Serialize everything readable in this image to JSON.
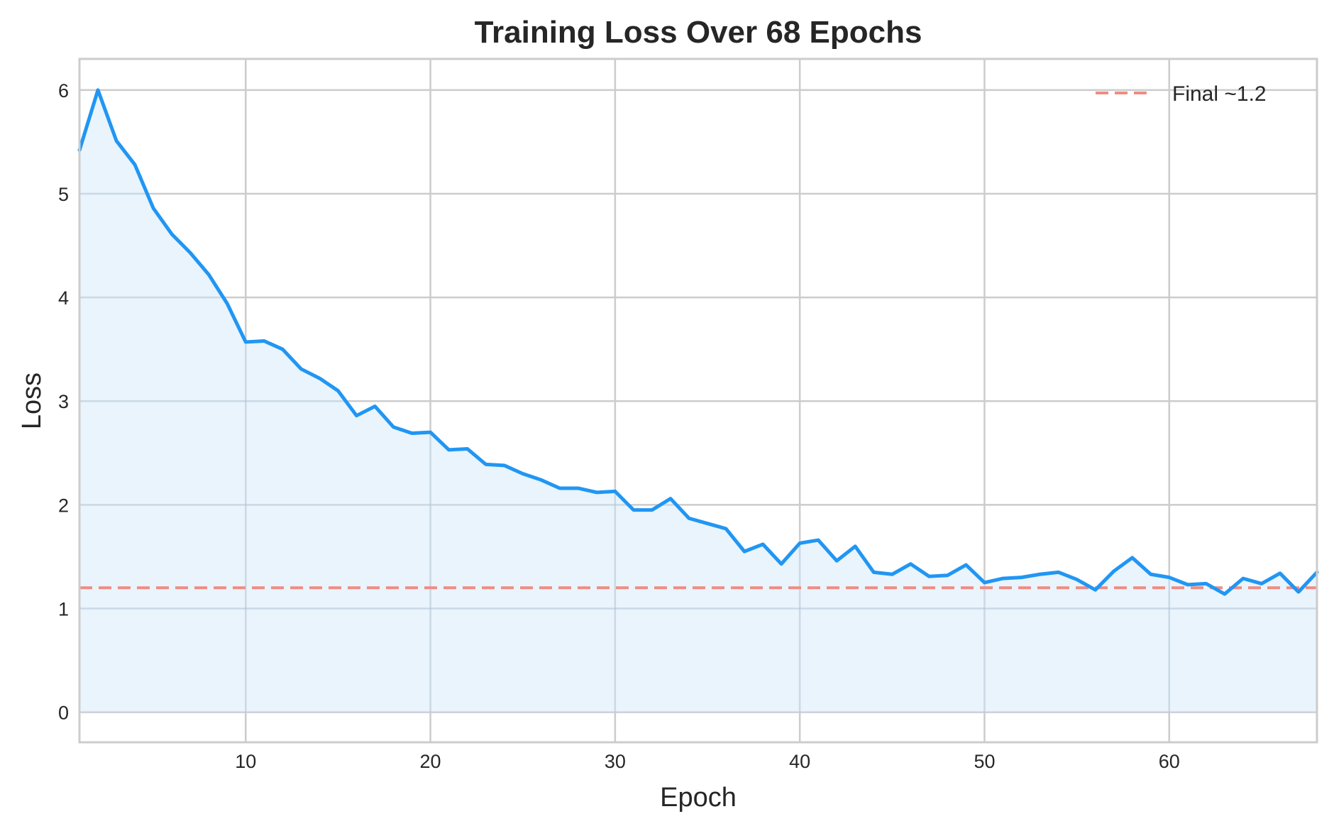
{
  "chart_data": {
    "type": "line",
    "title": "Training Loss Over 68 Epochs",
    "xlabel": "Epoch",
    "ylabel": "Loss",
    "xlim": [
      1,
      68
    ],
    "ylim": [
      -0.29,
      6.3
    ],
    "xticks": [
      10,
      20,
      30,
      40,
      50,
      60
    ],
    "yticks": [
      0,
      1,
      2,
      3,
      4,
      5,
      6
    ],
    "grid": true,
    "legend_position": "upper right",
    "series": [
      {
        "name": "Training Loss",
        "color": "#2196F3",
        "fill": true,
        "fill_color": "#E5F2FC",
        "x": [
          1,
          2,
          3,
          4,
          5,
          6,
          7,
          8,
          9,
          10,
          11,
          12,
          13,
          14,
          15,
          16,
          17,
          18,
          19,
          20,
          21,
          22,
          23,
          24,
          25,
          26,
          27,
          28,
          29,
          30,
          31,
          32,
          33,
          34,
          35,
          36,
          37,
          38,
          39,
          40,
          41,
          42,
          43,
          44,
          45,
          46,
          47,
          48,
          49,
          50,
          51,
          52,
          53,
          54,
          55,
          56,
          57,
          58,
          59,
          60,
          61,
          62,
          63,
          64,
          65,
          66,
          67,
          68
        ],
        "values": [
          5.42,
          6.0,
          5.51,
          5.28,
          4.86,
          4.61,
          4.43,
          4.22,
          3.94,
          3.57,
          3.58,
          3.5,
          3.31,
          3.22,
          3.1,
          2.86,
          2.95,
          2.75,
          2.69,
          2.7,
          2.53,
          2.54,
          2.39,
          2.38,
          2.3,
          2.24,
          2.16,
          2.16,
          2.12,
          2.13,
          1.95,
          1.95,
          2.06,
          1.87,
          1.82,
          1.77,
          1.55,
          1.62,
          1.43,
          1.63,
          1.66,
          1.46,
          1.6,
          1.35,
          1.33,
          1.43,
          1.31,
          1.32,
          1.42,
          1.25,
          1.29,
          1.3,
          1.33,
          1.35,
          1.28,
          1.18,
          1.36,
          1.49,
          1.33,
          1.3,
          1.23,
          1.24,
          1.14,
          1.29,
          1.24,
          1.34,
          1.16,
          1.35
        ]
      },
      {
        "name": "Final ~1.2",
        "type": "hline",
        "value": 1.2,
        "color": "#F08C84",
        "style": "dashed"
      }
    ],
    "legend": [
      {
        "label": "Final ~1.2",
        "color": "#F08C84",
        "style": "dashed"
      }
    ]
  }
}
